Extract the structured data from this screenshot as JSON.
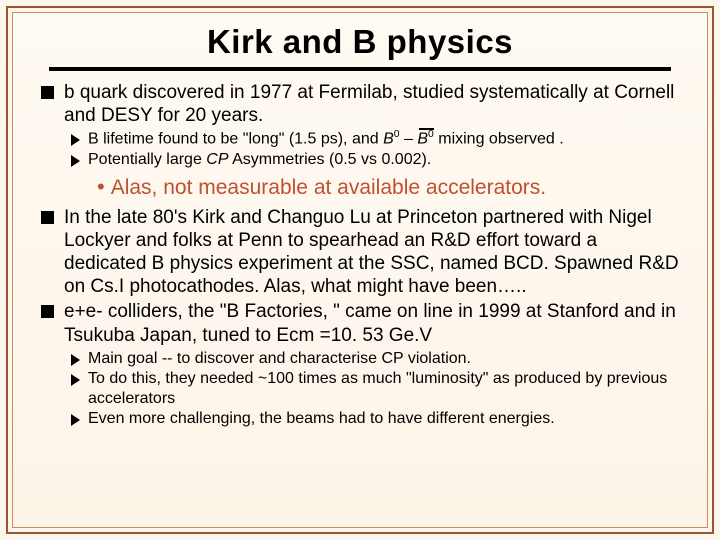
{
  "title": "Kirk and B physics",
  "bullets": {
    "b1": " b quark discovered in 1977 at Fermilab, studied systematically at Cornell and DESY for  20 years.",
    "b1_s1_pre": "B lifetime found to be \"long\" (1.5 ps), and  ",
    "b1_s1_b0a": "B",
    "b1_s1_b0a_sup": "0",
    "b1_s1_dash": " – ",
    "b1_s1_b0b": "B",
    "b1_s1_b0b_sup": "0",
    "b1_s1_post": " mixing observed .",
    "b1_s2_pre": "Potentially large ",
    "b1_s2_cp": "CP",
    "b1_s2_post": " Asymmetries (0.5 vs 0.002).",
    "highlight": "Alas, not measurable at available accelerators.",
    "b2": "In the late 80's Kirk and Changuo Lu at Princeton partnered with Nigel Lockyer and folks at Penn to spearhead an R&D effort toward a dedicated B physics experiment at the SSC, named BCD.  Spawned R&D on Cs.I photocathodes.   Alas, what might have been…..",
    "b3": "e+e- colliders, the \"B Factories, \"  came on line in 1999 at Stanford and in Tsukuba Japan, tuned to  Ecm  =10. 53 Ge.V",
    "b3_s1": "Main goal -- to discover and characterise CP violation.",
    "b3_s2": "To do this, they needed ~100 times as much \"luminosity\" as produced by previous accelerators",
    "b3_s3": "Even more challenging, the beams had to have different energies."
  }
}
